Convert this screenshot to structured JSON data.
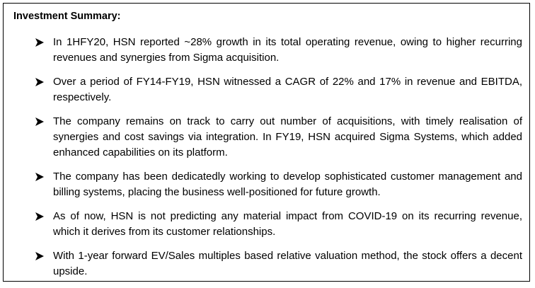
{
  "title": "Investment Summary:",
  "bullet_icon": "arrowhead-bullet-icon",
  "items": [
    "In 1HFY20, HSN reported ~28% growth in its total operating revenue, owing to higher recurring revenues and synergies from Sigma acquisition.",
    "Over a period of FY14-FY19, HSN witnessed a CAGR of 22% and 17% in revenue and EBITDA, respectively.",
    "The company remains on track to carry out number of acquisitions, with timely realisation of synergies and cost savings via integration. In FY19, HSN acquired Sigma Systems, which added enhanced capabilities on its platform.",
    "The company has been dedicatedly working to develop sophisticated customer management and billing systems, placing the business well-positioned for future growth.",
    "As of now, HSN is not predicting any material impact from COVID-19 on its recurring revenue, which it derives from its customer relationships.",
    "With 1-year forward EV/Sales multiples based relative valuation method, the stock offers a decent upside."
  ]
}
